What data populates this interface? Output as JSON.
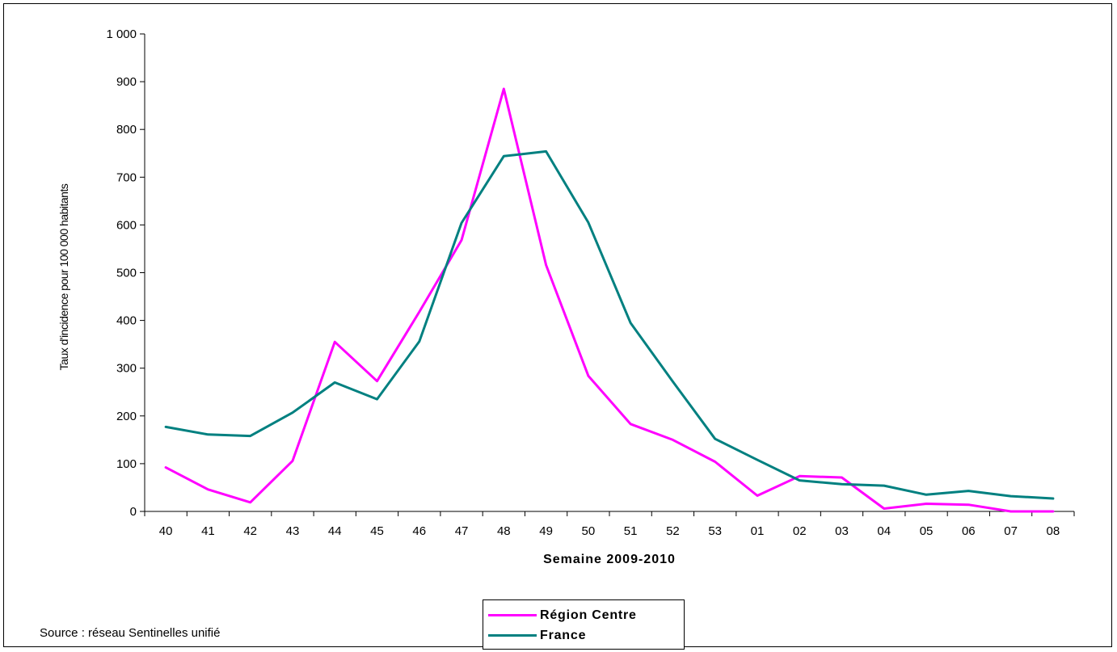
{
  "chart_data": {
    "type": "line",
    "title": "",
    "xlabel": "Semaine  2009-2010",
    "ylabel": "Taux d'incidence pour 100 000 habitants",
    "categories": [
      "40",
      "41",
      "42",
      "43",
      "44",
      "45",
      "46",
      "47",
      "48",
      "49",
      "50",
      "51",
      "52",
      "53",
      "01",
      "02",
      "03",
      "04",
      "05",
      "06",
      "07",
      "08"
    ],
    "ylim": [
      0,
      1000
    ],
    "yticks": [
      0,
      100,
      200,
      300,
      400,
      500,
      600,
      700,
      800,
      900,
      1000
    ],
    "ytick_labels": [
      "0",
      "100",
      "200",
      "300",
      "400",
      "500",
      "600",
      "700",
      "800",
      "900",
      "1 000"
    ],
    "grid": false,
    "legend_position": "bottom",
    "series": [
      {
        "name": "Région Centre",
        "color": "#ff00ff",
        "values": [
          92,
          46,
          19,
          106,
          355,
          273,
          418,
          568,
          885,
          516,
          284,
          183,
          150,
          104,
          33,
          74,
          71,
          6,
          16,
          14,
          0,
          0
        ]
      },
      {
        "name": "France",
        "color": "#008080",
        "values": [
          177,
          161,
          158,
          207,
          270,
          235,
          356,
          604,
          744,
          754,
          605,
          395,
          272,
          152,
          108,
          65,
          57,
          54,
          35,
          43,
          32,
          27
        ]
      }
    ]
  },
  "source_note": "Source : réseau Sentinelles unifié"
}
